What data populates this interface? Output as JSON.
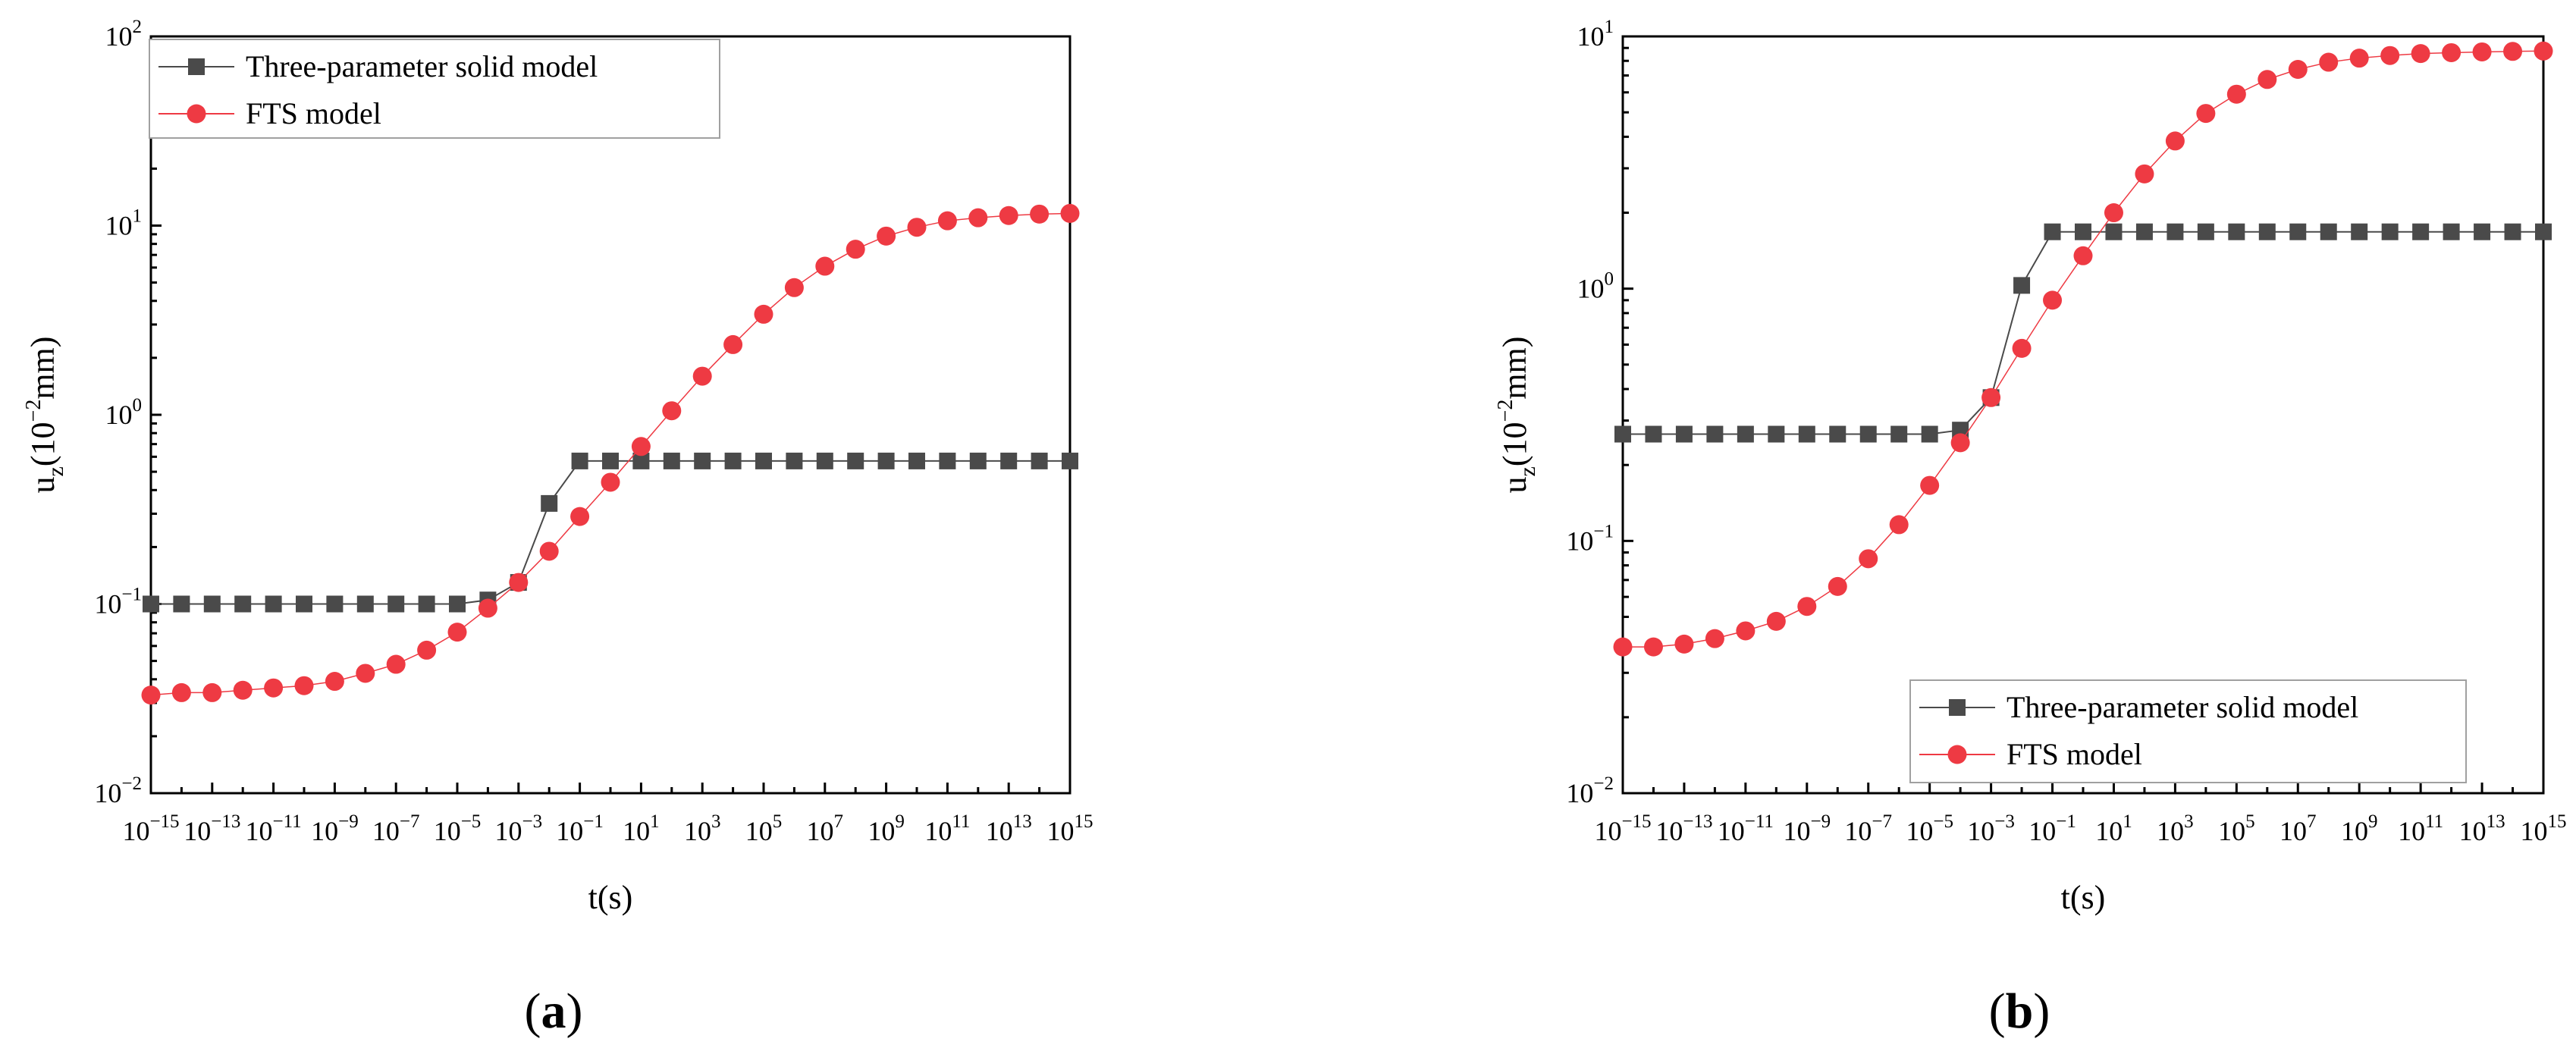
{
  "chart_data": [
    {
      "type": "line",
      "panel_label": "(a)",
      "xlabel": "t(s)",
      "ylabel": "uz(10−2mm)",
      "x_scale": "log",
      "y_scale": "log",
      "xlim": [
        1e-15,
        1000000000000000.0
      ],
      "ylim": [
        0.01,
        100
      ],
      "x_tick_exponents": [
        -15,
        -13,
        -11,
        -9,
        -7,
        -5,
        -3,
        -1,
        1,
        3,
        5,
        7,
        9,
        11,
        13,
        15
      ],
      "y_tick_exponents": [
        -2,
        -1,
        0,
        1,
        2
      ],
      "legend_position": "top-left",
      "grid": false,
      "x_log10": [
        -15,
        -14,
        -13,
        -12,
        -11,
        -10,
        -9,
        -8,
        -7,
        -6,
        -5,
        -4,
        -3,
        -2,
        -1,
        0,
        1,
        2,
        3,
        4,
        5,
        6,
        7,
        8,
        9,
        10,
        11,
        12,
        13,
        14,
        15
      ],
      "series": [
        {
          "name": "Three-parameter solid model",
          "color": "#4a4a4a",
          "marker": "square",
          "values": [
            0.1,
            0.1,
            0.1,
            0.1,
            0.1,
            0.1,
            0.1,
            0.1,
            0.1,
            0.1,
            0.1,
            0.105,
            0.13,
            0.34,
            0.57,
            0.57,
            0.57,
            0.57,
            0.57,
            0.57,
            0.57,
            0.57,
            0.57,
            0.57,
            0.57,
            0.57,
            0.57,
            0.57,
            0.57,
            0.57,
            0.57
          ]
        },
        {
          "name": "FTS model",
          "color": "#ee3a43",
          "marker": "circle",
          "values": [
            0.033,
            0.034,
            0.034,
            0.035,
            0.036,
            0.037,
            0.039,
            0.043,
            0.048,
            0.057,
            0.071,
            0.095,
            0.13,
            0.19,
            0.29,
            0.44,
            0.68,
            1.05,
            1.6,
            2.35,
            3.4,
            4.7,
            6.1,
            7.5,
            8.8,
            9.8,
            10.6,
            11.0,
            11.3,
            11.5,
            11.6
          ]
        }
      ]
    },
    {
      "type": "line",
      "panel_label": "(b)",
      "xlabel": "t(s)",
      "ylabel": "uz(10−2mm)",
      "x_scale": "log",
      "y_scale": "log",
      "xlim": [
        1e-15,
        1000000000000000.0
      ],
      "ylim": [
        0.01,
        10
      ],
      "x_tick_exponents": [
        -15,
        -13,
        -11,
        -9,
        -7,
        -5,
        -3,
        -1,
        1,
        3,
        5,
        7,
        9,
        11,
        13,
        15
      ],
      "y_tick_exponents": [
        -2,
        -1,
        0,
        1
      ],
      "legend_position": "bottom-right",
      "grid": false,
      "x_log10": [
        -15,
        -14,
        -13,
        -12,
        -11,
        -10,
        -9,
        -8,
        -7,
        -6,
        -5,
        -4,
        -3,
        -2,
        -1,
        0,
        1,
        2,
        3,
        4,
        5,
        6,
        7,
        8,
        9,
        10,
        11,
        12,
        13,
        14,
        15
      ],
      "series": [
        {
          "name": "Three-parameter solid model",
          "color": "#4a4a4a",
          "marker": "square",
          "values": [
            0.265,
            0.265,
            0.265,
            0.265,
            0.265,
            0.265,
            0.265,
            0.265,
            0.265,
            0.265,
            0.265,
            0.275,
            0.37,
            1.03,
            1.68,
            1.68,
            1.68,
            1.68,
            1.68,
            1.68,
            1.68,
            1.68,
            1.68,
            1.68,
            1.68,
            1.68,
            1.68,
            1.68,
            1.68,
            1.68,
            1.68
          ]
        },
        {
          "name": "FTS model",
          "color": "#ee3a43",
          "marker": "circle",
          "values": [
            0.038,
            0.038,
            0.039,
            0.041,
            0.044,
            0.048,
            0.055,
            0.066,
            0.085,
            0.116,
            0.166,
            0.245,
            0.37,
            0.58,
            0.9,
            1.35,
            2.0,
            2.85,
            3.85,
            4.95,
            5.9,
            6.75,
            7.4,
            7.9,
            8.2,
            8.4,
            8.55,
            8.62,
            8.68,
            8.72,
            8.75
          ]
        }
      ]
    }
  ]
}
